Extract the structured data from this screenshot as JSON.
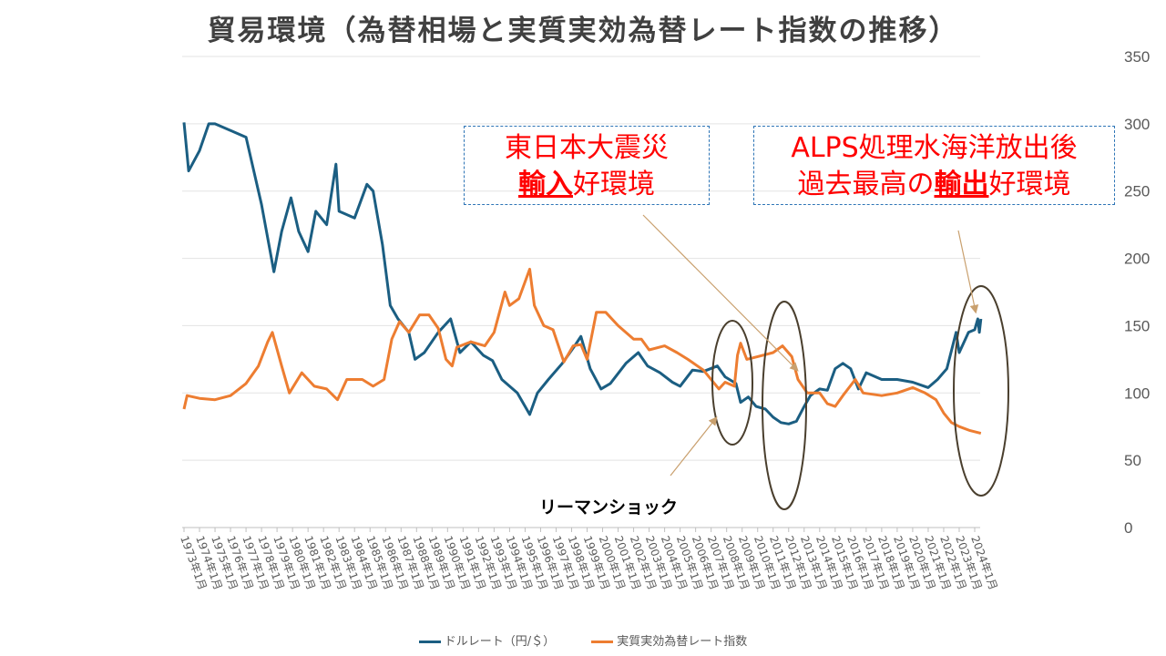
{
  "title": "貿易環境（為替相場と実質実効為替レート指数の推移）",
  "annotations": {
    "box1": {
      "line1": "東日本大震災",
      "line2_bold": "輸入",
      "line2_rest": "好環境"
    },
    "box2": {
      "line1": "ALPS処理水海洋放出後",
      "line2_pre": "過去最高の",
      "line2_bold": "輸出",
      "line2_rest": "好環境"
    },
    "lehman": "リーマンショック"
  },
  "colors": {
    "dollar": "#1B5E82",
    "reer": "#ED7D31",
    "ellipse": "#4A3F2E",
    "arrow": "#C9A06E",
    "box_border": "#2E75B6",
    "box_text": "#FF0000"
  },
  "chart_data": {
    "type": "line",
    "title": "貿易環境（為替相場と実質実効為替レート指数の推移）",
    "xlabel": "",
    "ylabel": "",
    "xlim": [
      1973,
      2024.5
    ],
    "ylim": [
      0,
      350
    ],
    "y_axis_position": "right",
    "yticks": [
      "0",
      "50",
      "100",
      "150",
      "200",
      "250",
      "300",
      "350"
    ],
    "xticks": [
      "1973年1月",
      "1974年1月",
      "1975年1月",
      "1976年1月",
      "1977年1月",
      "1978年1月",
      "1979年1月",
      "1980年1月",
      "1981年1月",
      "1982年1月",
      "1983年1月",
      "1984年1月",
      "1985年1月",
      "1986年1月",
      "1987年1月",
      "1988年1月",
      "1989年1月",
      "1990年1月",
      "1991年1月",
      "1992年1月",
      "1993年1月",
      "1994年1月",
      "1995年1月",
      "1996年1月",
      "1997年1月",
      "1998年1月",
      "1999年1月",
      "2000年1月",
      "2001年1月",
      "2002年1月",
      "2003年1月",
      "2004年1月",
      "2005年1月",
      "2006年1月",
      "2007年1月",
      "2008年1月",
      "2009年1月",
      "2010年1月",
      "2011年1月",
      "2012年1月",
      "2013年1月",
      "2014年1月",
      "2015年1月",
      "2016年1月",
      "2017年1月",
      "2018年1月",
      "2019年1月",
      "2020年1月",
      "2021年1月",
      "2022年1月",
      "2023年1月",
      "2024年1月"
    ],
    "grid": true,
    "legend": "bottom",
    "series": [
      {
        "name": "ドルレート（円/＄）",
        "color": "#1B5E82",
        "points": [
          [
            1973,
            301
          ],
          [
            1973.3,
            265
          ],
          [
            1974,
            280
          ],
          [
            1974.6,
            300
          ],
          [
            1975,
            300
          ],
          [
            1976,
            295
          ],
          [
            1977,
            290
          ],
          [
            1977.5,
            265
          ],
          [
            1978,
            240
          ],
          [
            1978.8,
            190
          ],
          [
            1979.3,
            220
          ],
          [
            1979.9,
            245
          ],
          [
            1980.4,
            220
          ],
          [
            1981,
            205
          ],
          [
            1981.5,
            235
          ],
          [
            1982.2,
            225
          ],
          [
            1982.8,
            270
          ],
          [
            1983,
            235
          ],
          [
            1984,
            230
          ],
          [
            1984.8,
            255
          ],
          [
            1985.2,
            250
          ],
          [
            1985.8,
            210
          ],
          [
            1986.3,
            165
          ],
          [
            1986.8,
            155
          ],
          [
            1987.5,
            145
          ],
          [
            1987.9,
            125
          ],
          [
            1988.5,
            130
          ],
          [
            1989.4,
            145
          ],
          [
            1990.2,
            155
          ],
          [
            1990.8,
            130
          ],
          [
            1991.5,
            138
          ],
          [
            1992.3,
            128
          ],
          [
            1992.9,
            124
          ],
          [
            1993.5,
            110
          ],
          [
            1994.5,
            100
          ],
          [
            1995.3,
            84
          ],
          [
            1995.8,
            100
          ],
          [
            1996.5,
            110
          ],
          [
            1997.4,
            122
          ],
          [
            1998.2,
            135
          ],
          [
            1998.6,
            142
          ],
          [
            1999.2,
            118
          ],
          [
            1999.9,
            103
          ],
          [
            2000.5,
            107
          ],
          [
            2001.5,
            122
          ],
          [
            2002.3,
            130
          ],
          [
            2002.9,
            120
          ],
          [
            2003.7,
            115
          ],
          [
            2004.5,
            108
          ],
          [
            2005,
            105
          ],
          [
            2005.8,
            117
          ],
          [
            2006.5,
            116
          ],
          [
            2007.4,
            120
          ],
          [
            2007.9,
            112
          ],
          [
            2008.6,
            107
          ],
          [
            2008.9,
            93
          ],
          [
            2009.4,
            97
          ],
          [
            2009.9,
            90
          ],
          [
            2010.5,
            88
          ],
          [
            2011,
            82
          ],
          [
            2011.5,
            78
          ],
          [
            2012,
            77
          ],
          [
            2012.5,
            79
          ],
          [
            2013,
            90
          ],
          [
            2013.4,
            98
          ],
          [
            2014,
            103
          ],
          [
            2014.5,
            102
          ],
          [
            2015,
            118
          ],
          [
            2015.5,
            122
          ],
          [
            2016,
            118
          ],
          [
            2016.5,
            103
          ],
          [
            2017,
            115
          ],
          [
            2018,
            110
          ],
          [
            2019,
            110
          ],
          [
            2020,
            108
          ],
          [
            2021,
            104
          ],
          [
            2021.6,
            110
          ],
          [
            2022.2,
            118
          ],
          [
            2022.8,
            145
          ],
          [
            2023,
            130
          ],
          [
            2023.6,
            145
          ],
          [
            2024,
            147
          ],
          [
            2024.2,
            155
          ],
          [
            2024.3,
            145
          ],
          [
            2024.4,
            155
          ]
        ]
      },
      {
        "name": "実質実効為替レート指数",
        "color": "#ED7D31",
        "points": [
          [
            1973,
            88
          ],
          [
            1973.2,
            98
          ],
          [
            1974,
            96
          ],
          [
            1975,
            95
          ],
          [
            1976,
            98
          ],
          [
            1977,
            107
          ],
          [
            1977.8,
            120
          ],
          [
            1978.4,
            138
          ],
          [
            1978.7,
            145
          ],
          [
            1979.3,
            120
          ],
          [
            1979.8,
            100
          ],
          [
            1980.6,
            115
          ],
          [
            1981.4,
            105
          ],
          [
            1982.2,
            103
          ],
          [
            1982.9,
            95
          ],
          [
            1983.5,
            110
          ],
          [
            1984.5,
            110
          ],
          [
            1985.2,
            105
          ],
          [
            1985.9,
            110
          ],
          [
            1986.4,
            140
          ],
          [
            1986.9,
            153
          ],
          [
            1987.5,
            145
          ],
          [
            1988.2,
            158
          ],
          [
            1988.8,
            158
          ],
          [
            1989.4,
            148
          ],
          [
            1989.9,
            125
          ],
          [
            1990.3,
            120
          ],
          [
            1990.6,
            134
          ],
          [
            1991.5,
            138
          ],
          [
            1992.4,
            135
          ],
          [
            1993,
            145
          ],
          [
            1993.7,
            175
          ],
          [
            1994,
            165
          ],
          [
            1994.6,
            170
          ],
          [
            1995.3,
            192
          ],
          [
            1995.6,
            165
          ],
          [
            1996.2,
            150
          ],
          [
            1996.8,
            147
          ],
          [
            1997.5,
            123
          ],
          [
            1998.1,
            135
          ],
          [
            1998.6,
            136
          ],
          [
            1999,
            125
          ],
          [
            1999.6,
            160
          ],
          [
            2000.2,
            160
          ],
          [
            2001,
            150
          ],
          [
            2002,
            140
          ],
          [
            2002.5,
            140
          ],
          [
            2003,
            132
          ],
          [
            2004,
            135
          ],
          [
            2004.8,
            130
          ],
          [
            2005.5,
            125
          ],
          [
            2006.5,
            117
          ],
          [
            2007.5,
            103
          ],
          [
            2007.9,
            108
          ],
          [
            2008.5,
            105
          ],
          [
            2008.7,
            128
          ],
          [
            2008.9,
            137
          ],
          [
            2009.3,
            125
          ],
          [
            2010,
            127
          ],
          [
            2011,
            130
          ],
          [
            2011.6,
            135
          ],
          [
            2012.2,
            127
          ],
          [
            2012.6,
            110
          ],
          [
            2013.2,
            100
          ],
          [
            2014,
            100
          ],
          [
            2014.5,
            92
          ],
          [
            2015,
            90
          ],
          [
            2015.5,
            98
          ],
          [
            2016.3,
            110
          ],
          [
            2016.8,
            100
          ],
          [
            2018,
            98
          ],
          [
            2019,
            100
          ],
          [
            2020,
            104
          ],
          [
            2020.8,
            100
          ],
          [
            2021.5,
            95
          ],
          [
            2022,
            85
          ],
          [
            2022.5,
            78
          ],
          [
            2023,
            75
          ],
          [
            2023.7,
            72
          ],
          [
            2024.4,
            70
          ]
        ]
      }
    ]
  }
}
